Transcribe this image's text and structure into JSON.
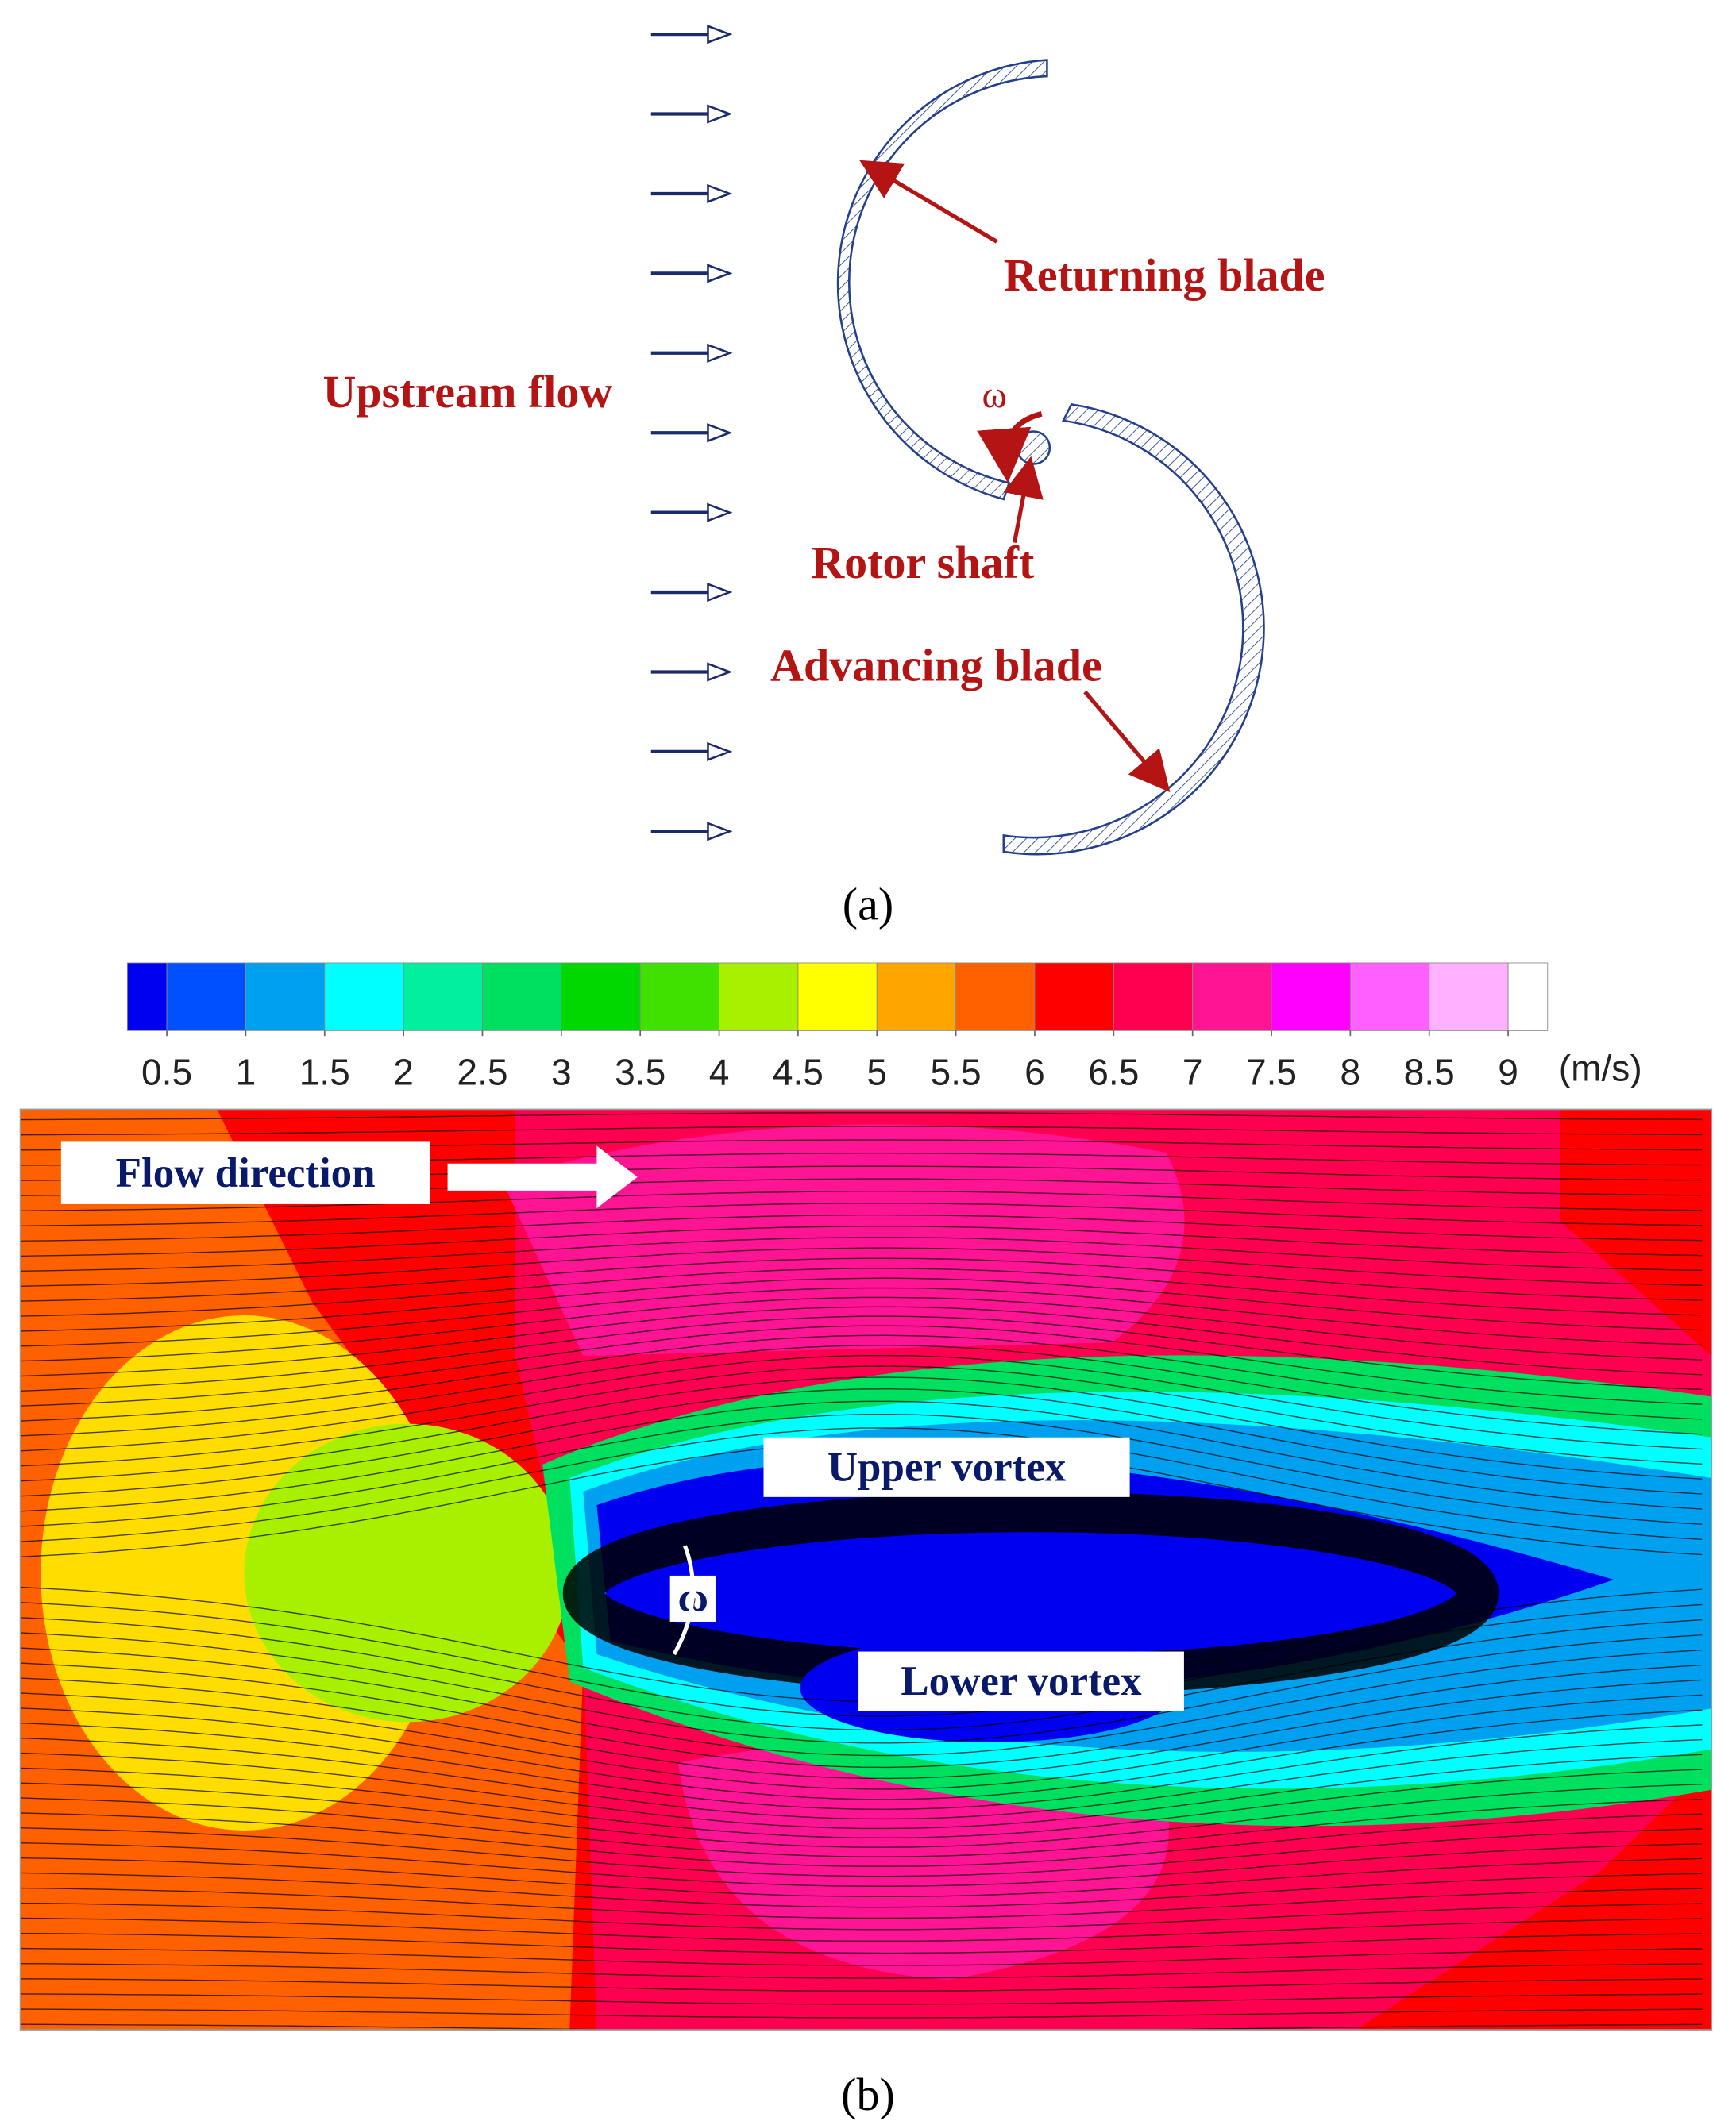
{
  "panel_a": {
    "returning_blade": "Returning blade",
    "upstream_flow": "Upstream flow",
    "omega": "ω",
    "rotor_shaft": "Rotor shaft",
    "advancing_blade": "Advancing blade",
    "caption": "(a)"
  },
  "panel_b": {
    "colorbar": {
      "ticks": [
        0.5,
        1,
        1.5,
        2,
        2.5,
        3,
        3.5,
        4,
        4.5,
        5,
        5.5,
        6,
        6.5,
        7,
        7.5,
        8,
        8.5,
        9
      ],
      "unit": "(m/s)",
      "colors": [
        "#0000f0",
        "#0050ff",
        "#00a0f0",
        "#00ffff",
        "#00f0a0",
        "#00e060",
        "#00d800",
        "#40e000",
        "#a8f000",
        "#ffff00",
        "#ffa500",
        "#ff6000",
        "#ff0000",
        "#ff0050",
        "#ff1493",
        "#ff00ff",
        "#ff60ff",
        "#ffb0ff",
        "#ffffff"
      ]
    },
    "flow_direction": "Flow direction",
    "upper_vortex": "Upper vortex",
    "omega": "ω",
    "lower_vortex": "Lower vortex",
    "caption": "(b)"
  }
}
